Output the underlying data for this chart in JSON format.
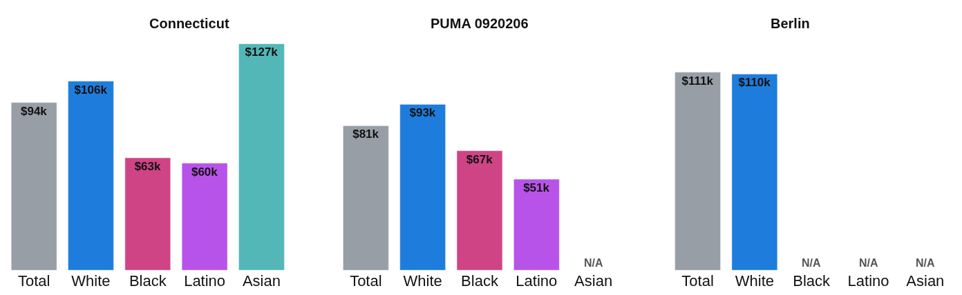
{
  "chart_data": [
    {
      "type": "bar",
      "title": "Connecticut",
      "categories": [
        "Total",
        "White",
        "Black",
        "Latino",
        "Asian"
      ],
      "values": [
        94,
        106,
        63,
        60,
        127
      ],
      "value_labels": [
        "$94k",
        "$106k",
        "$63k",
        "$60k",
        "$127k"
      ],
      "colors": [
        "#979ea6",
        "#1e7ddc",
        "#cf4485",
        "#b853ea",
        "#53b7b7"
      ]
    },
    {
      "type": "bar",
      "title": "PUMA 0920206",
      "categories": [
        "Total",
        "White",
        "Black",
        "Latino",
        "Asian"
      ],
      "values": [
        81,
        93,
        67,
        51,
        null
      ],
      "value_labels": [
        "$81k",
        "$93k",
        "$67k",
        "$51k",
        "N/A"
      ],
      "colors": [
        "#979ea6",
        "#1e7ddc",
        "#cf4485",
        "#b853ea",
        "#53b7b7"
      ]
    },
    {
      "type": "bar",
      "title": "Berlin",
      "categories": [
        "Total",
        "White",
        "Black",
        "Latino",
        "Asian"
      ],
      "values": [
        111,
        110,
        null,
        null,
        null
      ],
      "value_labels": [
        "$111k",
        "$110k",
        "N/A",
        "N/A",
        "N/A"
      ],
      "colors": [
        "#979ea6",
        "#1e7ddc",
        "#cf4485",
        "#b853ea",
        "#53b7b7"
      ]
    }
  ]
}
